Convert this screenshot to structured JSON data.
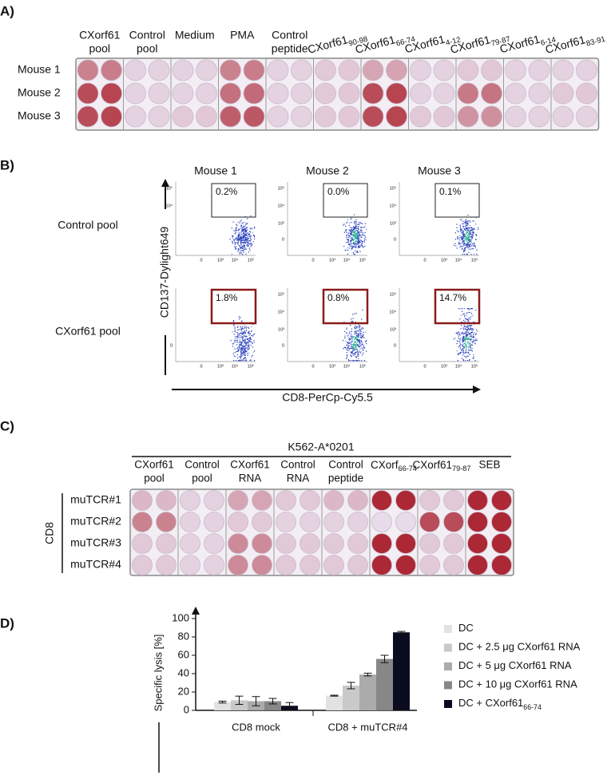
{
  "panel_a": {
    "label": "A)",
    "columns": [
      {
        "lines": [
          "CXorf61",
          "pool"
        ]
      },
      {
        "lines": [
          "Control",
          "pool"
        ]
      },
      {
        "lines": [
          "Medium"
        ]
      },
      {
        "lines": [
          "PMA"
        ]
      },
      {
        "lines": [
          "Control",
          "peptide"
        ]
      },
      {
        "name": "CXorf61",
        "sub": "90-98"
      },
      {
        "name": "CXorf61",
        "sub": "66-74"
      },
      {
        "name": "CXorf61",
        "sub": "4-12"
      },
      {
        "name": "CXorf61",
        "sub": "79-87"
      },
      {
        "name": "CXorf61",
        "sub": "6-14"
      },
      {
        "name": "CXorf61",
        "sub": "83-91"
      }
    ],
    "rows": [
      "Mouse 1",
      "Mouse 2",
      "Mouse 3"
    ]
  },
  "panel_b": {
    "label": "B)",
    "columns": [
      "Mouse 1",
      "Mouse 2",
      "Mouse 3"
    ],
    "rows": [
      {
        "name": "Control pool",
        "gates": [
          "0.2%",
          "0.0%",
          "0.1%"
        ]
      },
      {
        "name": "CXorf61 pool",
        "gates": [
          "1.8%",
          "0.8%",
          "14.7%"
        ]
      }
    ],
    "y_axis_label": "CD137-Dylight649",
    "x_axis_label": "CD8-PerCp-Cy5.5",
    "plot_yticks": [
      "10⁵",
      "10⁴",
      "10³",
      "0"
    ],
    "plot_xticks": [
      "0",
      "10³",
      "10⁴",
      "10⁵"
    ]
  },
  "panel_c": {
    "label": "C)",
    "header": "K562-A*0201",
    "group": "CD8",
    "columns": [
      {
        "lines": [
          "CXorf61",
          "pool"
        ]
      },
      {
        "lines": [
          "Control",
          "pool"
        ]
      },
      {
        "lines": [
          "CXorf61",
          "RNA"
        ]
      },
      {
        "lines": [
          "Control",
          "RNA"
        ]
      },
      {
        "lines": [
          "Control",
          "peptide"
        ]
      },
      {
        "name": "CXorf",
        "sub": "66-74"
      },
      {
        "name": "CXorf61",
        "sub": "79-87"
      },
      {
        "lines": [
          "SEB"
        ]
      }
    ],
    "rows": [
      "muTCR#1",
      "muTCR#2",
      "muTCR#3",
      "muTCR#4"
    ]
  },
  "chart_data": {
    "type": "bar",
    "panel_label": "D)",
    "ylabel": "Specific lysis [%]",
    "categories": [
      "CD8 mock",
      "CD8 + muTCR#4"
    ],
    "series": [
      {
        "name": "DC",
        "color": "#e2e2e2",
        "values": [
          9,
          16
        ],
        "errors": [
          1,
          0.5
        ]
      },
      {
        "name": "DC + 2.5 μg CXorf61 RNA",
        "color": "#c9c9c9",
        "values": [
          11,
          27
        ],
        "errors": [
          4.5,
          3.5
        ]
      },
      {
        "name": "DC + 5 μg CXorf61 RNA",
        "color": "#ababab",
        "values": [
          10,
          39
        ],
        "errors": [
          5,
          1.5
        ]
      },
      {
        "name": "DC + 10 μg CXorf61 RNA",
        "color": "#878787",
        "values": [
          10,
          56
        ],
        "errors": [
          3,
          4
        ]
      },
      {
        "name": "DC + CXorf61",
        "name_sub": "66-74",
        "color": "#0b0b1f",
        "values": [
          5,
          85
        ],
        "errors": [
          3.5,
          1
        ]
      }
    ],
    "ylim": [
      0,
      100
    ],
    "yticks": [
      0,
      20,
      40,
      60,
      80,
      100
    ]
  }
}
